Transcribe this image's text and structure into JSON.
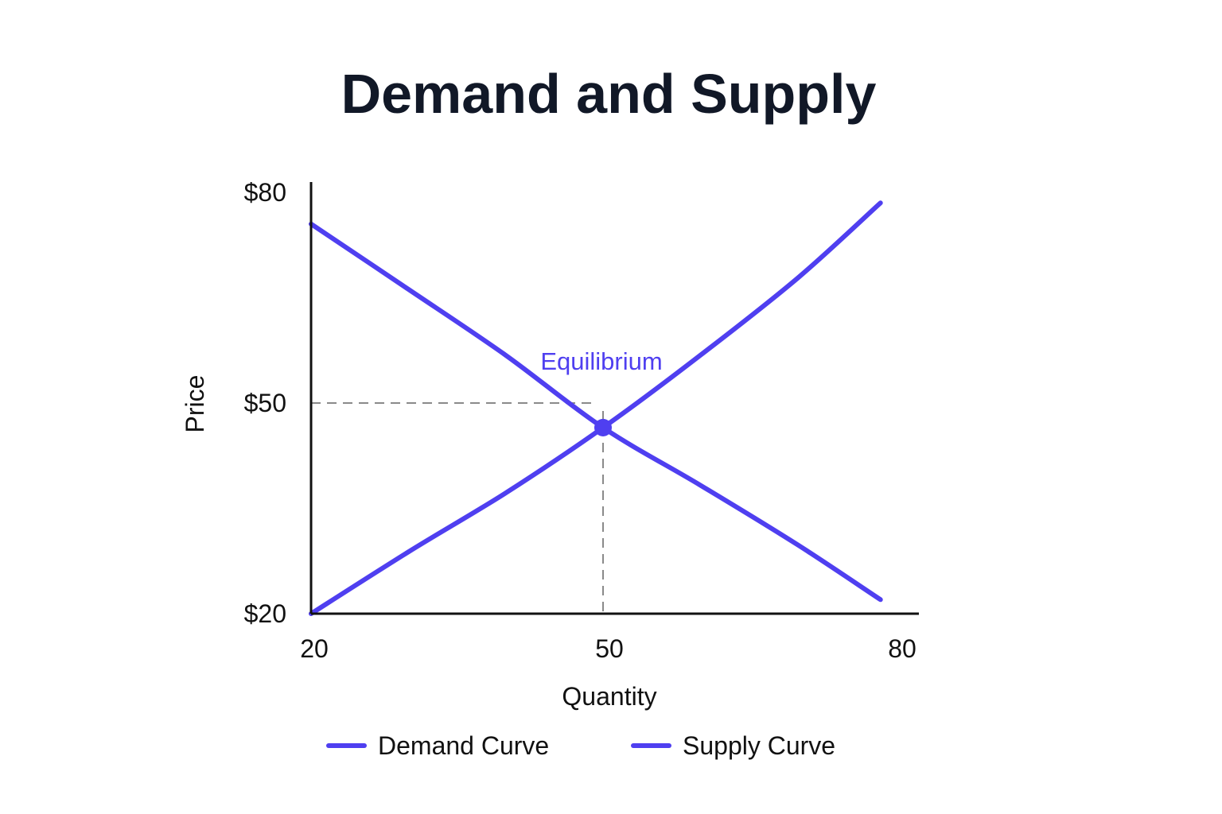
{
  "chart_data": {
    "type": "line",
    "title": "Demand and Supply",
    "xlabel": "Quantity",
    "ylabel": "Price",
    "xlim": [
      20,
      80
    ],
    "ylim": [
      20,
      80
    ],
    "x_ticks": [
      {
        "value": 20,
        "label": "20"
      },
      {
        "value": 50,
        "label": "50"
      },
      {
        "value": 80,
        "label": "80"
      }
    ],
    "y_ticks": [
      {
        "value": 20,
        "label": "$20"
      },
      {
        "value": 50,
        "label": "$50"
      },
      {
        "value": 80,
        "label": "$80"
      }
    ],
    "grid": false,
    "legend_position": "bottom",
    "series": [
      {
        "name": "Demand Curve",
        "color": "#4f3ff0",
        "x": [
          20,
          30,
          40,
          50,
          60,
          70,
          78.5
        ],
        "y": [
          75.5,
          66.2,
          56.8,
          46.5,
          38.3,
          29.8,
          22
        ]
      },
      {
        "name": "Supply Curve",
        "color": "#4f3ff0",
        "x": [
          20,
          30,
          40,
          50,
          60,
          70,
          78.5
        ],
        "y": [
          20,
          28.8,
          37.2,
          46.5,
          56.8,
          67.8,
          78.5
        ]
      }
    ],
    "reference_lines": {
      "horizontal_y": 50,
      "vertical_x": 50
    },
    "annotations": [
      {
        "text": "Equilibrium",
        "x": 50,
        "y": 46.5,
        "color": "#4f3ff0"
      }
    ]
  }
}
